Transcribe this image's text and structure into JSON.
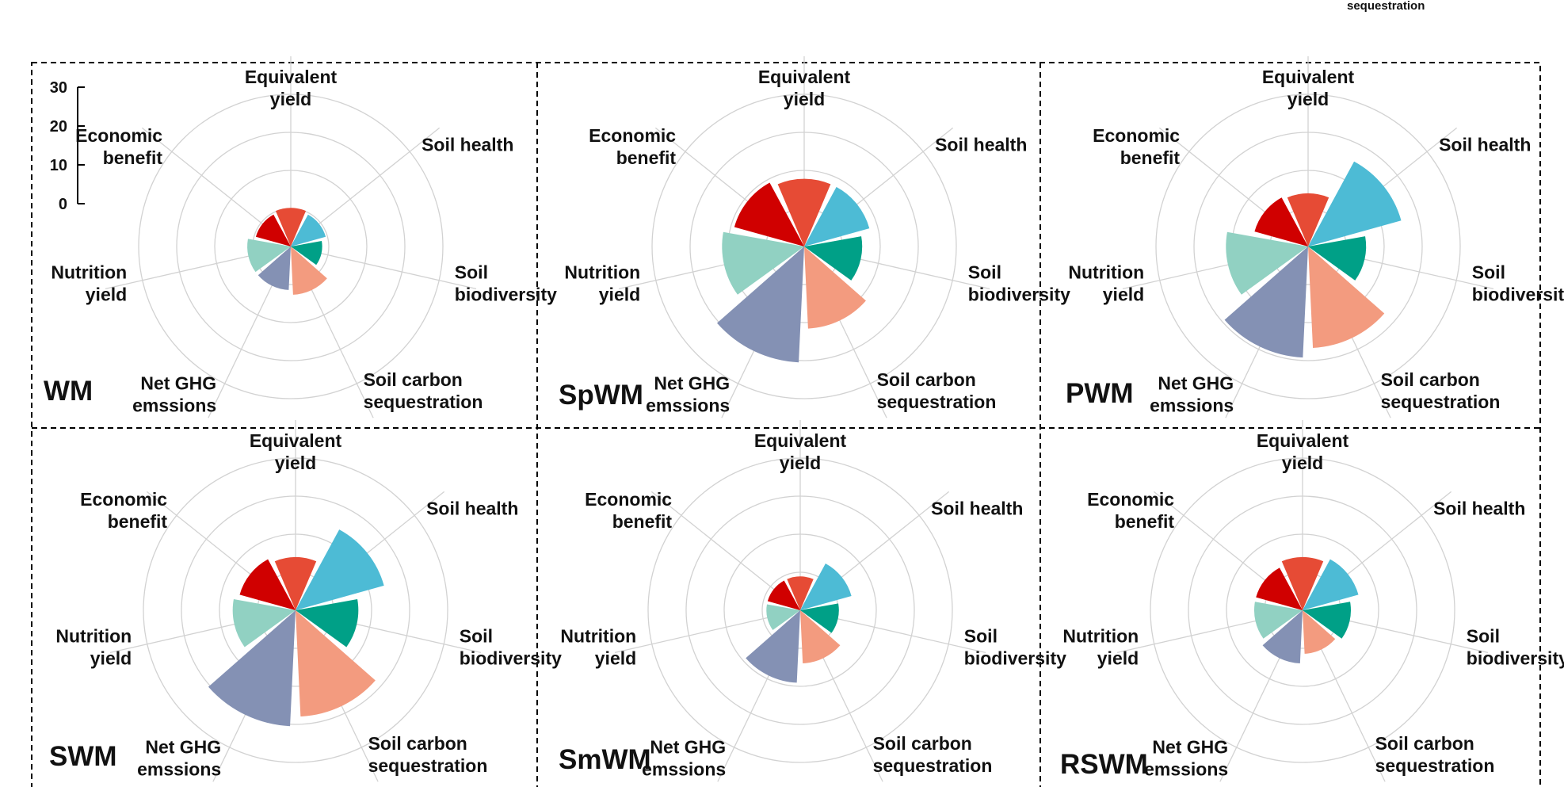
{
  "top_fragment": "sequestration",
  "colors": {
    "Equivalent yield": "#E64B35",
    "Soil health": "#4DBBD5",
    "Soil biodiversity": "#00A087",
    "Soil carbon sequestration": "#F39B7F",
    "Net GHG emssions": "#8491B4",
    "Nutrition yield": "#91D1C2",
    "Economic benefit": "#D00000"
  },
  "chart_data": [
    {
      "type": "polar-bar",
      "title": "WM",
      "scale": {
        "ticks": [
          "30",
          "20",
          "10",
          "0"
        ],
        "range": [
          0,
          30
        ]
      },
      "categories": [
        "Equivalent yield",
        "Soil health",
        "Soil biodiversity",
        "Soil carbon sequestration",
        "Net GHG emssions",
        "Nutrition yield",
        "Economic benefit"
      ],
      "labels": [
        [
          "Equivalent",
          "yield"
        ],
        [
          "Soil health"
        ],
        [
          "Soil",
          "biodiversity"
        ],
        [
          "Soil carbon",
          "sequestration"
        ],
        [
          "Net GHG",
          "emssions"
        ],
        [
          "Nutrition",
          "yield"
        ],
        [
          "Economic",
          "benefit"
        ]
      ],
      "values": [
        8,
        7.5,
        6.5,
        10,
        9,
        9,
        7.5
      ]
    },
    {
      "type": "polar-bar",
      "title": "SpWM",
      "categories": [
        "Equivalent yield",
        "Soil health",
        "Soil biodiversity",
        "Soil carbon sequestration",
        "Net GHG emssions",
        "Nutrition yield",
        "Economic benefit"
      ],
      "labels": [
        [
          "Equivalent",
          "yield"
        ],
        [
          "Soil health"
        ],
        [
          "Soil",
          "biodiversity"
        ],
        [
          "Soil carbon",
          "sequestration"
        ],
        [
          "Net GHG",
          "emssions"
        ],
        [
          "Nutrition",
          "yield"
        ],
        [
          "Economic",
          "benefit"
        ]
      ],
      "values": [
        14,
        14,
        12,
        17,
        24,
        17,
        15
      ]
    },
    {
      "type": "polar-bar",
      "title": "PWM",
      "categories": [
        "Equivalent yield",
        "Soil health",
        "Soil biodiversity",
        "Soil carbon sequestration",
        "Net GHG emssions",
        "Nutrition yield",
        "Economic benefit"
      ],
      "labels": [
        [
          "Equivalent",
          "yield"
        ],
        [
          "Soil health"
        ],
        [
          "Soil",
          "biodiversity"
        ],
        [
          "Soil carbon",
          "sequestration"
        ],
        [
          "Net GHG",
          "emssions"
        ],
        [
          "Nutrition",
          "yield"
        ],
        [
          "Economic",
          "benefit"
        ]
      ],
      "values": [
        11,
        20,
        12,
        21,
        23,
        17,
        11.5
      ]
    },
    {
      "type": "polar-bar",
      "title": "SWM",
      "categories": [
        "Equivalent yield",
        "Soil health",
        "Soil biodiversity",
        "Soil carbon sequestration",
        "Net GHG emssions",
        "Nutrition yield",
        "Economic benefit"
      ],
      "labels": [
        [
          "Equivalent",
          "yield"
        ],
        [
          "Soil health"
        ],
        [
          "Soil",
          "biodiversity"
        ],
        [
          "Soil carbon",
          "sequestration"
        ],
        [
          "Net GHG",
          "emssions"
        ],
        [
          "Nutrition",
          "yield"
        ],
        [
          "Economic",
          "benefit"
        ]
      ],
      "values": [
        11,
        19,
        13,
        22,
        24,
        13,
        12
      ]
    },
    {
      "type": "polar-bar",
      "title": "SmWM",
      "categories": [
        "Equivalent yield",
        "Soil health",
        "Soil biodiversity",
        "Soil carbon sequestration",
        "Net GHG emssions",
        "Nutrition yield",
        "Economic benefit"
      ],
      "labels": [
        [
          "Equivalent",
          "yield"
        ],
        [
          "Soil health"
        ],
        [
          "Soil",
          "biodiversity"
        ],
        [
          "Soil carbon",
          "sequestration"
        ],
        [
          "Net GHG",
          "emssions"
        ],
        [
          "Nutrition",
          "yield"
        ],
        [
          "Economic",
          "benefit"
        ]
      ],
      "values": [
        7,
        11,
        8,
        11,
        15,
        7,
        7
      ]
    },
    {
      "type": "polar-bar",
      "title": "RSWM",
      "categories": [
        "Equivalent yield",
        "Soil health",
        "Soil biodiversity",
        "Soil carbon sequestration",
        "Net GHG emssions",
        "Nutrition yield",
        "Economic benefit"
      ],
      "labels": [
        [
          "Equivalent",
          "yield"
        ],
        [
          "Soil health"
        ],
        [
          "Soil",
          "biodiversity"
        ],
        [
          "Soil carbon",
          "sequestration"
        ],
        [
          "Net GHG",
          "emssions"
        ],
        [
          "Nutrition",
          "yield"
        ],
        [
          "Economic",
          "benefit"
        ]
      ],
      "values": [
        11,
        12,
        10,
        9,
        11,
        10,
        10
      ]
    }
  ]
}
